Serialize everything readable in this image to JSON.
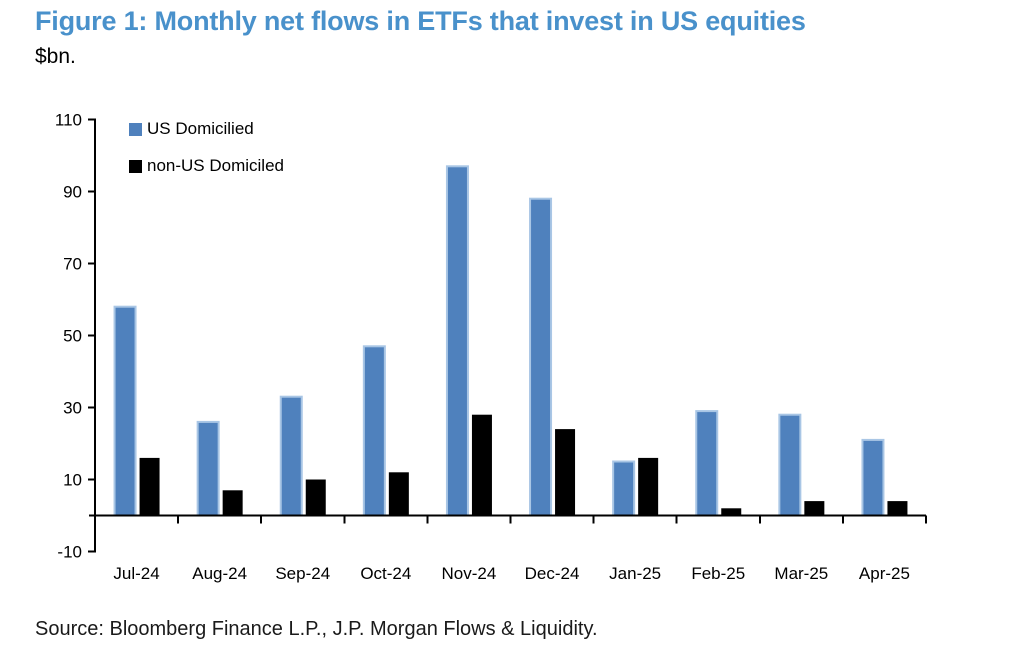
{
  "header": {
    "title": "Figure 1: Monthly net flows in ETFs that invest in US equities",
    "units": "$bn.",
    "title_color": "#4991CB"
  },
  "legend": {
    "items": [
      {
        "label": "US Domicilied",
        "color": "#4F81BD"
      },
      {
        "label": "non-US Domiciled",
        "color": "#000000"
      }
    ]
  },
  "chart_data": {
    "type": "bar",
    "title": "Figure 1: Monthly net flows in ETFs that invest in US equities",
    "ylabel": "$bn.",
    "xlabel": "",
    "categories": [
      "Jul-24",
      "Aug-24",
      "Sep-24",
      "Oct-24",
      "Nov-24",
      "Dec-24",
      "Jan-25",
      "Feb-25",
      "Mar-25",
      "Apr-25"
    ],
    "series": [
      {
        "name": "US Domicilied",
        "color": "#4F81BD",
        "border_color": "#A9C6E5",
        "values": [
          58,
          26,
          33,
          47,
          97,
          88,
          15,
          29,
          28,
          21
        ]
      },
      {
        "name": "non-US Domiciled",
        "color": "#000000",
        "border_color": "#000000",
        "values": [
          16,
          7,
          10,
          12,
          28,
          24,
          16,
          2,
          4,
          4
        ]
      }
    ],
    "ylim": [
      -10,
      110
    ],
    "yticks": [
      110,
      90,
      70,
      50,
      30,
      10,
      -10
    ],
    "grid": false,
    "legend_position": "inside-top-left"
  },
  "footer": {
    "source": "Source: Bloomberg Finance L.P., J.P. Morgan Flows & Liquidity."
  }
}
